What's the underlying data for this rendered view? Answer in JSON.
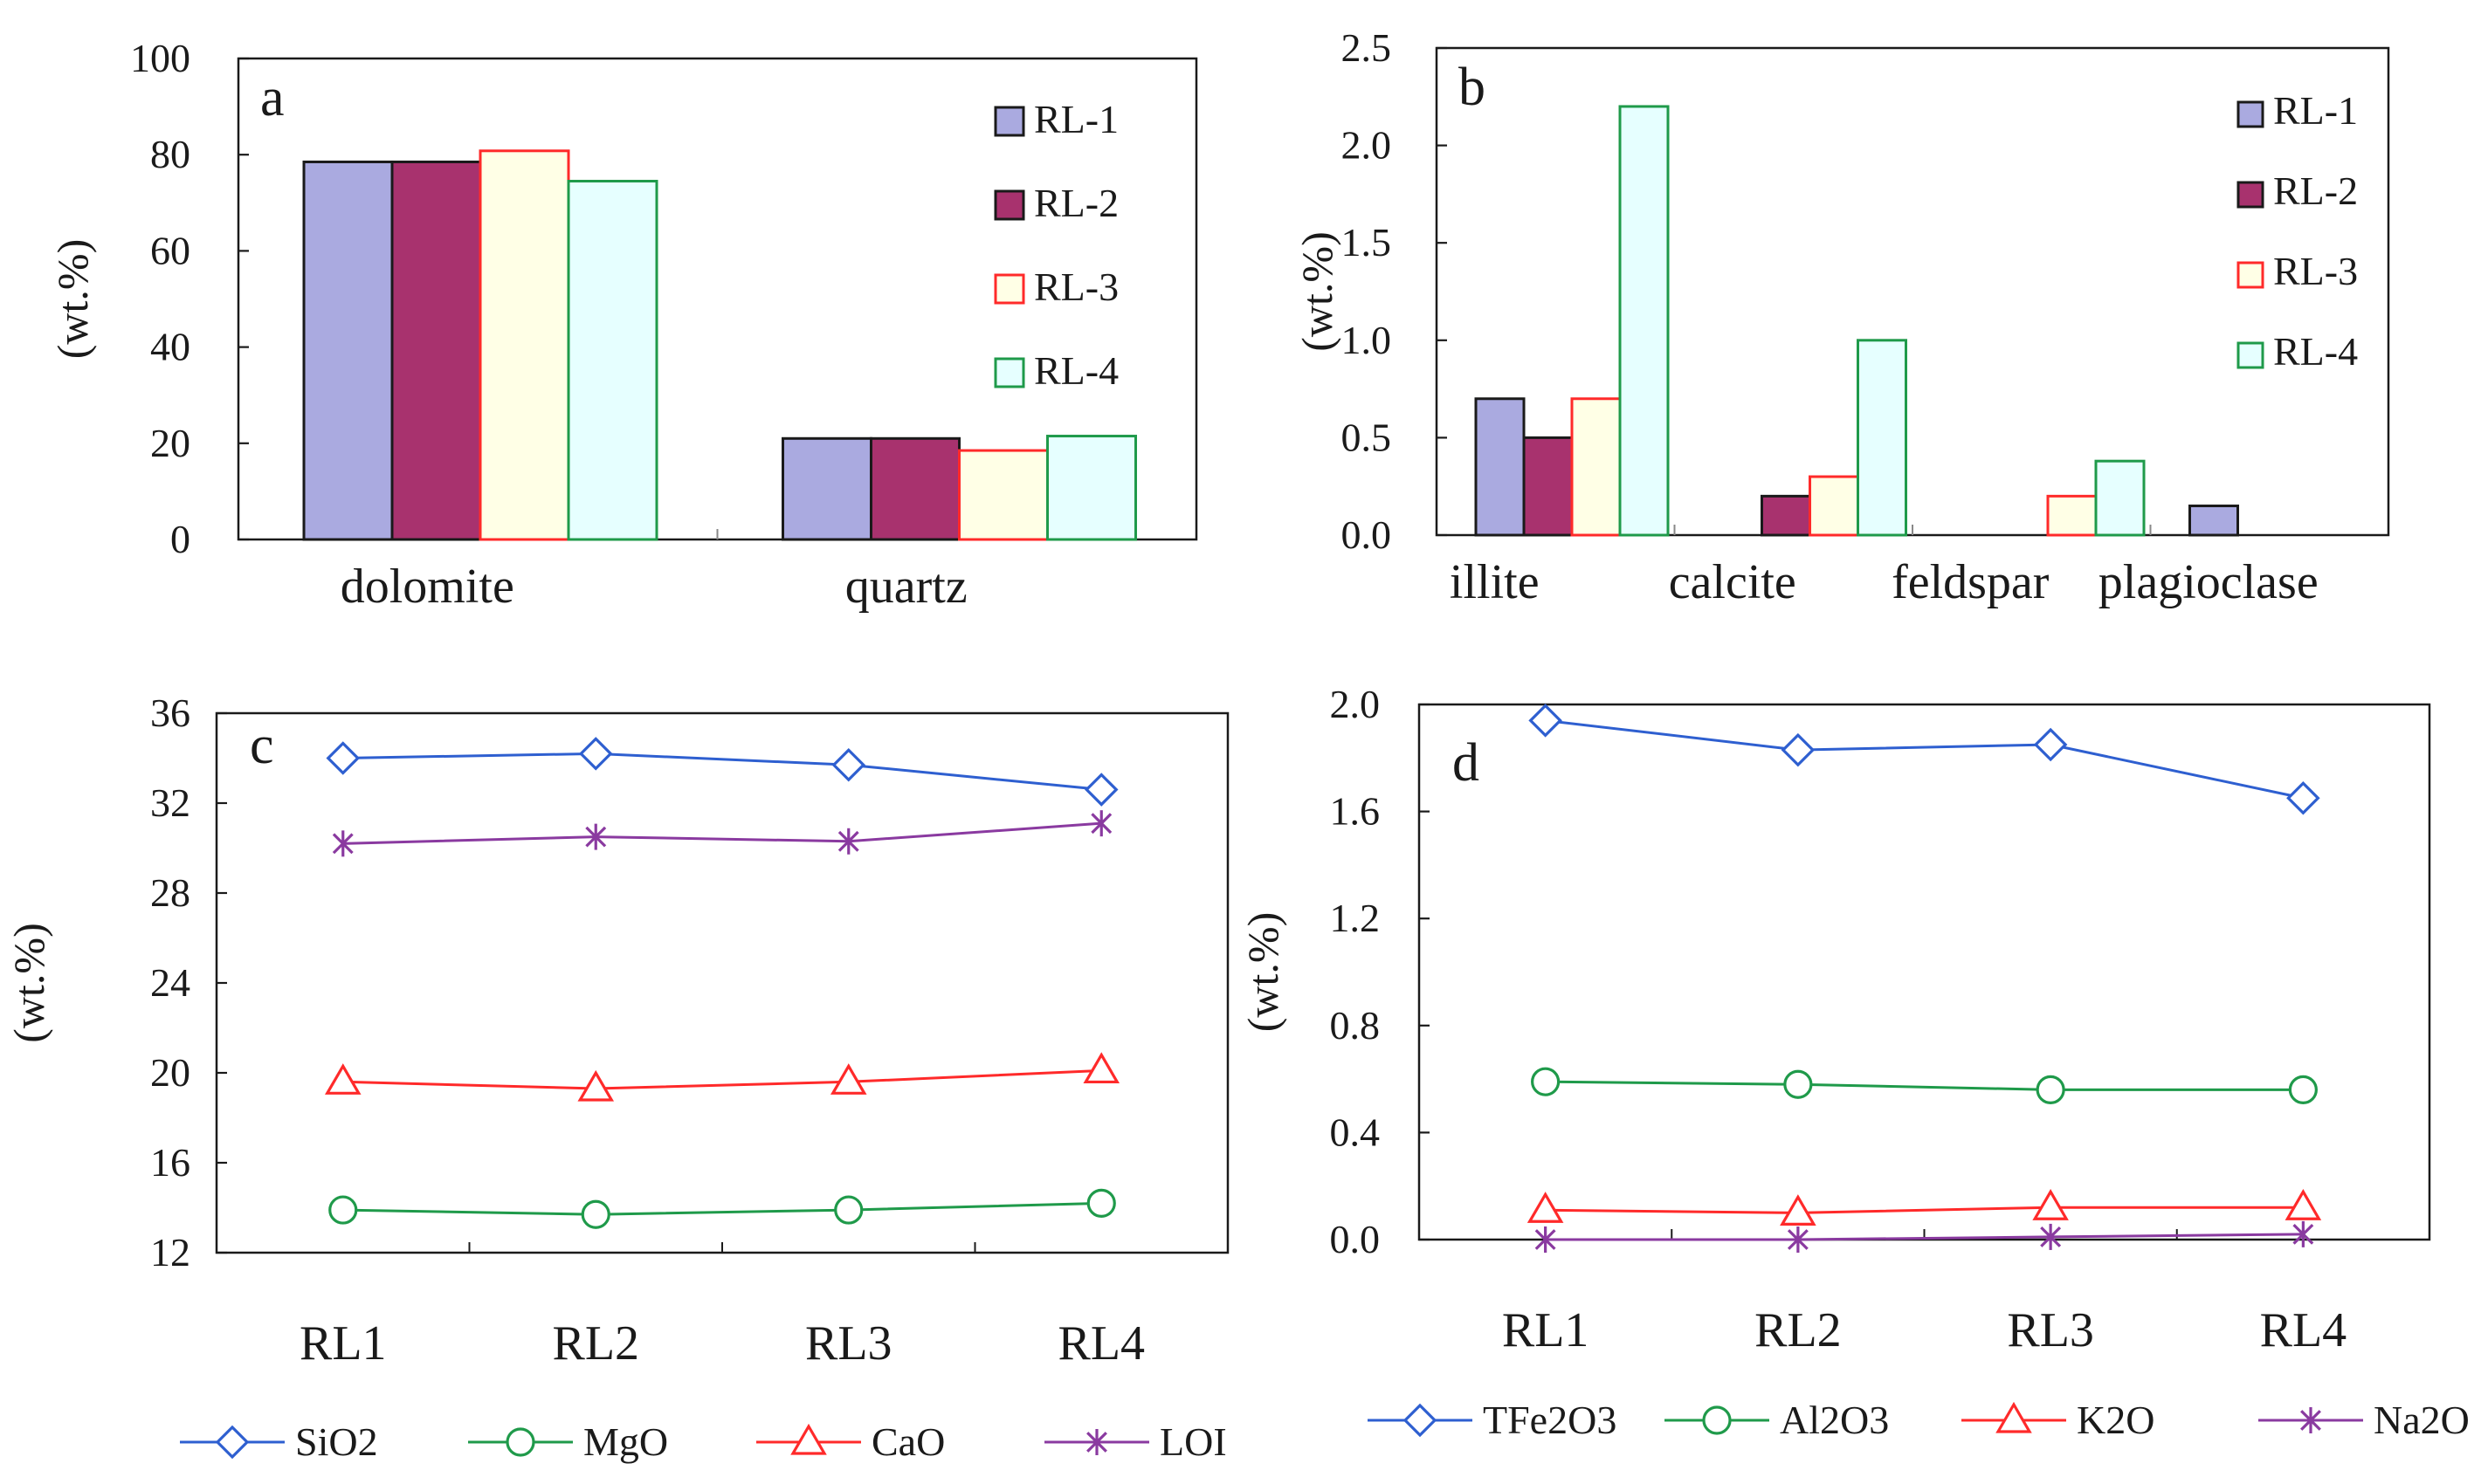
{
  "chart_data": [
    {
      "type": "bar",
      "panel_label": "a",
      "title": "",
      "categories": [
        "dolomite",
        "quartz"
      ],
      "series": [
        {
          "name": "RL-1",
          "values": [
            78.5,
            21
          ],
          "fill": "#aaaae0",
          "stroke": "#1a1a1a"
        },
        {
          "name": "RL-2",
          "values": [
            78.5,
            21
          ],
          "fill": "#a8326e",
          "stroke": "#1a1a1a"
        },
        {
          "name": "RL-3",
          "values": [
            80.8,
            18.5
          ],
          "fill": "#ffffe6",
          "stroke": "#ff2a2a"
        },
        {
          "name": "RL-4",
          "values": [
            74.5,
            21.5
          ],
          "fill": "#e6ffff",
          "stroke": "#1f9a4a"
        }
      ],
      "xlabel": "",
      "ylabel": "(wt.%)",
      "ylim": [
        0,
        100
      ],
      "yticks": [
        0,
        20,
        40,
        60,
        80,
        100
      ],
      "ytick_labels": [
        "0",
        "20",
        "40",
        "60",
        "80",
        "100"
      ],
      "legend": "top-right",
      "grid": false
    },
    {
      "type": "bar",
      "panel_label": "b",
      "title": "",
      "categories": [
        "illite",
        "calcite",
        "feldspar",
        "plagioclase"
      ],
      "series": [
        {
          "name": "RL-1",
          "values": [
            0.7,
            0,
            0,
            0.15
          ],
          "fill": "#aaaae0",
          "stroke": "#1a1a1a"
        },
        {
          "name": "RL-2",
          "values": [
            0.5,
            0.2,
            0,
            0
          ],
          "fill": "#a8326e",
          "stroke": "#1a1a1a"
        },
        {
          "name": "RL-3",
          "values": [
            0.7,
            0.3,
            0.2,
            0
          ],
          "fill": "#ffffe6",
          "stroke": "#ff2a2a"
        },
        {
          "name": "RL-4",
          "values": [
            2.2,
            1.0,
            0.38,
            0
          ],
          "fill": "#e6ffff",
          "stroke": "#1f9a4a"
        }
      ],
      "xlabel": "",
      "ylabel": "(wt.%)",
      "ylim": [
        0,
        2.5
      ],
      "yticks": [
        0,
        0.5,
        1.0,
        1.5,
        2.0,
        2.5
      ],
      "ytick_labels": [
        "0.0",
        "0.5",
        "1.0",
        "1.5",
        "2.0",
        "2.5"
      ],
      "legend": "top-right",
      "grid": false
    },
    {
      "type": "line",
      "panel_label": "c",
      "title": "",
      "x": [
        "RL1",
        "RL2",
        "RL3",
        "RL4"
      ],
      "series": [
        {
          "name": "SiO2",
          "values": [
            34.0,
            34.2,
            33.7,
            32.6
          ],
          "color": "#2e5fd0",
          "marker": "diamond"
        },
        {
          "name": "MgO",
          "values": [
            13.9,
            13.7,
            13.9,
            14.2
          ],
          "color": "#1f9a4a",
          "marker": "circle"
        },
        {
          "name": "CaO",
          "values": [
            19.6,
            19.3,
            19.6,
            20.1
          ],
          "color": "#ff2a2a",
          "marker": "triangle"
        },
        {
          "name": "LOI",
          "values": [
            30.2,
            30.5,
            30.3,
            31.1
          ],
          "color": "#8a3aa0",
          "marker": "asterisk"
        }
      ],
      "xlabel": "",
      "ylabel": "(wt.%)",
      "ylim": [
        12,
        36
      ],
      "yticks": [
        12,
        16,
        20,
        24,
        28,
        32,
        36
      ],
      "ytick_labels": [
        "12",
        "16",
        "20",
        "24",
        "28",
        "32",
        "36"
      ],
      "legend": "bottom",
      "grid": false
    },
    {
      "type": "line",
      "panel_label": "d",
      "title": "",
      "x": [
        "RL1",
        "RL2",
        "RL3",
        "RL4"
      ],
      "series": [
        {
          "name": "TFe2O3",
          "values": [
            1.94,
            1.83,
            1.85,
            1.65
          ],
          "color": "#2e5fd0",
          "marker": "diamond"
        },
        {
          "name": "Al2O3",
          "values": [
            0.59,
            0.58,
            0.56,
            0.56
          ],
          "color": "#1f9a4a",
          "marker": "circle"
        },
        {
          "name": "K2O",
          "values": [
            0.11,
            0.1,
            0.12,
            0.12
          ],
          "color": "#ff2a2a",
          "marker": "triangle"
        },
        {
          "name": "Na2O",
          "values": [
            0.0,
            0.0,
            0.01,
            0.02
          ],
          "color": "#8a3aa0",
          "marker": "asterisk"
        }
      ],
      "xlabel": "",
      "ylabel": "(wt.%)",
      "ylim": [
        0,
        2.0
      ],
      "yticks": [
        0,
        0.4,
        0.8,
        1.2,
        1.6,
        2.0
      ],
      "ytick_labels": [
        "0.0",
        "0.4",
        "0.8",
        "1.2",
        "1.6",
        "2.0"
      ],
      "legend": "bottom",
      "grid": false
    }
  ]
}
